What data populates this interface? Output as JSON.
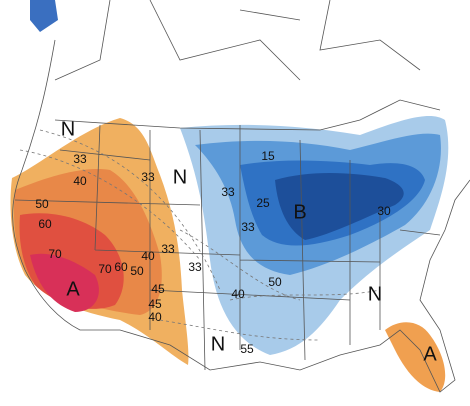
{
  "labels": [
    "N",
    33,
    40,
    33,
    "N",
    50,
    60,
    15,
    33,
    25,
    "B",
    33,
    30,
    70,
    40,
    33,
    70,
    60,
    50,
    33,
    "A",
    45,
    45,
    40,
    50,
    "N",
    "N",
    55,
    "A",
    40
  ]
}
